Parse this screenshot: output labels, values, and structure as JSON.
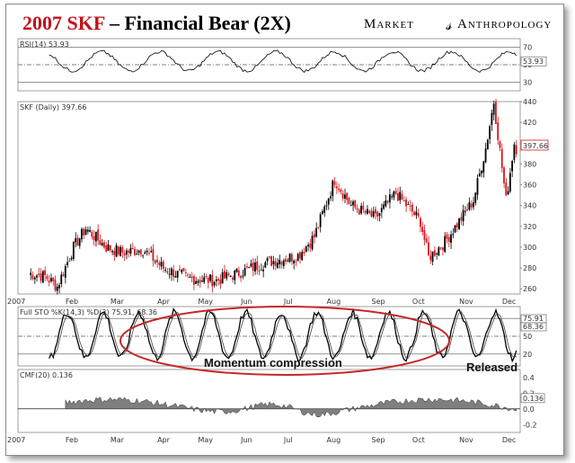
{
  "header": {
    "title_year_ticker": "2007 SKF",
    "title_rest": " – Financial Bear (2X)",
    "brand_left": "Market",
    "brand_right": "Anthropology"
  },
  "colors": {
    "title_red": "#c0141b",
    "candle_up": "#000000",
    "candle_down": "#d8141b",
    "cmf_fill": "#7f7f7f",
    "ellipse": "#c42a2a"
  },
  "chart_data": [
    {
      "type": "line",
      "title": "RSI(14) 53.93",
      "series": [
        {
          "name": "RSI(14)",
          "last": 53.93
        }
      ],
      "ylim": [
        30,
        70
      ],
      "yticks": [
        30,
        50,
        70
      ],
      "reference_lines": [
        30,
        50,
        70
      ],
      "last_value_label": "53.93"
    },
    {
      "type": "candlestick",
      "title": "SKF (Daily) 397.66",
      "ylim": [
        255,
        440
      ],
      "yticks": [
        260,
        280,
        300,
        320,
        340,
        360,
        380,
        400,
        420,
        440
      ],
      "last_value_label": "397.66",
      "months": [
        "2007",
        "Feb",
        "Mar",
        "Apr",
        "May",
        "Jun",
        "Jul",
        "Aug",
        "Sep",
        "Oct",
        "Nov",
        "Dec"
      ],
      "keypoints": [
        [
          "Feb",
          275
        ],
        [
          "Feb",
          272
        ],
        [
          "Mar",
          262
        ],
        [
          "Mar",
          300
        ],
        [
          "Mar",
          318
        ],
        [
          "Apr",
          300
        ],
        [
          "Apr",
          295
        ],
        [
          "Apr",
          298
        ],
        [
          "May",
          280
        ],
        [
          "May",
          270
        ],
        [
          "Jun",
          268
        ],
        [
          "Jun",
          276
        ],
        [
          "Jul",
          285
        ],
        [
          "Jul",
          292
        ],
        [
          "Aug",
          310
        ],
        [
          "Aug",
          365
        ],
        [
          "Aug",
          340
        ],
        [
          "Sep",
          328
        ],
        [
          "Sep",
          352
        ],
        [
          "Oct",
          325
        ],
        [
          "Oct",
          290
        ],
        [
          "Oct",
          305
        ],
        [
          "Nov",
          345
        ],
        [
          "Nov",
          395
        ],
        [
          "Nov",
          440
        ],
        [
          "Dec",
          345
        ],
        [
          "Dec",
          400
        ],
        [
          "Dec",
          395
        ]
      ]
    },
    {
      "type": "line",
      "title": "Full STO %K(14,3) %D(3) 75.91, 68.36",
      "series": [
        {
          "name": "%K(14,3)",
          "last": 75.91
        },
        {
          "name": "%D(3)",
          "last": 68.36
        }
      ],
      "ylim": [
        0,
        100
      ],
      "yticks": [
        20,
        50,
        80
      ],
      "last_value_labels": [
        "75.91",
        "68.36"
      ]
    },
    {
      "type": "area",
      "title": "CMF(20) 0.136",
      "series": [
        {
          "name": "CMF(20)",
          "last": 0.136
        }
      ],
      "ylim": [
        -0.3,
        0.5
      ],
      "yticks": [
        -0.2,
        0.0,
        0.2,
        0.4
      ],
      "last_value_label": "0.136",
      "months": [
        "2007",
        "Feb",
        "Mar",
        "Apr",
        "May",
        "Jun",
        "Jul",
        "Aug",
        "Sep",
        "Oct",
        "Nov",
        "Dec"
      ]
    }
  ],
  "annotations": {
    "momentum": "Momentum compression",
    "released": "Released"
  }
}
